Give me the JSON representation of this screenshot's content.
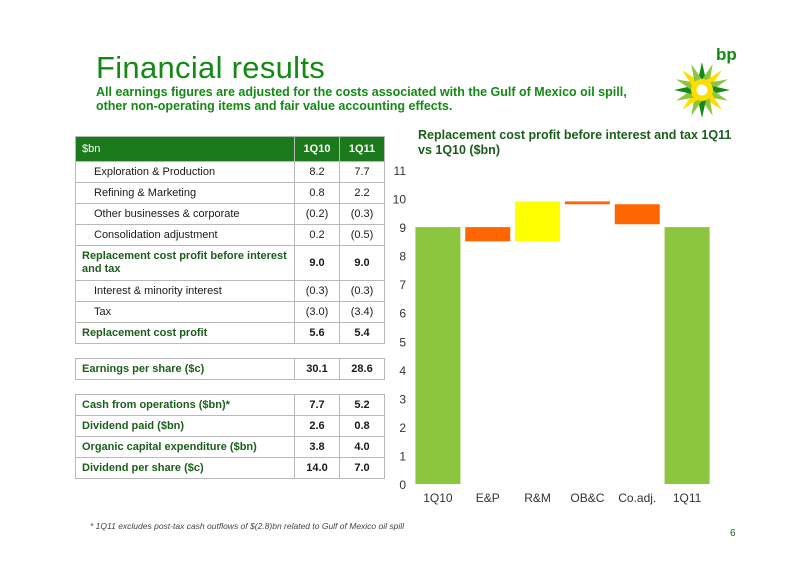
{
  "header": {
    "title": "Financial results",
    "subtitle": "All earnings figures are adjusted for the costs associated with the Gulf of Mexico oil spill, other non-operating items and fair value accounting effects.",
    "logo_text": "bp"
  },
  "table": {
    "header": [
      "$bn",
      "1Q10",
      "1Q11"
    ],
    "rows": [
      {
        "label": "Exploration & Production",
        "v1": "8.2",
        "v2": "7.7"
      },
      {
        "label": "Refining & Marketing",
        "v1": "0.8",
        "v2": "2.2"
      },
      {
        "label": "Other businesses & corporate",
        "v1": "(0.2)",
        "v2": "(0.3)"
      },
      {
        "label": "Consolidation adjustment",
        "v1": "0.2",
        "v2": "(0.5)"
      },
      {
        "label": "Replacement cost profit before interest and tax",
        "v1": "9.0",
        "v2": "9.0"
      },
      {
        "label": "Interest & minority interest",
        "v1": "(0.3)",
        "v2": "(0.3)"
      },
      {
        "label": "Tax",
        "v1": "(3.0)",
        "v2": "(3.4)"
      },
      {
        "label": "Replacement cost profit",
        "v1": "5.6",
        "v2": "5.4"
      }
    ],
    "eps": {
      "label": "Earnings per share ($c)",
      "v1": "30.1",
      "v2": "28.6"
    },
    "cash": [
      {
        "label": "Cash from operations ($bn)*",
        "v1": "7.7",
        "v2": "5.2"
      },
      {
        "label": "Dividend paid ($bn)",
        "v1": "2.6",
        "v2": "0.8"
      },
      {
        "label": "Organic capital expenditure ($bn)",
        "v1": "3.8",
        "v2": "4.0"
      },
      {
        "label": "Dividend per share ($c)",
        "v1": "14.0",
        "v2": "7.0"
      }
    ]
  },
  "chart_data": {
    "type": "bar",
    "subtype": "waterfall",
    "title": "Replacement cost profit before interest and tax 1Q11 vs 1Q10 ($bn)",
    "categories": [
      "1Q10",
      "E&P",
      "R&M",
      "OB&C",
      "Co.adj.",
      "1Q11"
    ],
    "bars": [
      {
        "category": "1Q10",
        "start": 0,
        "end": 9.0,
        "kind": "total"
      },
      {
        "category": "E&P",
        "start": 9.0,
        "end": 8.5,
        "kind": "decrease"
      },
      {
        "category": "R&M",
        "start": 8.5,
        "end": 9.9,
        "kind": "increase"
      },
      {
        "category": "OB&C",
        "start": 9.9,
        "end": 9.8,
        "kind": "decrease"
      },
      {
        "category": "Co.adj.",
        "start": 9.8,
        "end": 9.1,
        "kind": "decrease"
      },
      {
        "category": "1Q11",
        "start": 0,
        "end": 9.0,
        "kind": "total"
      }
    ],
    "ylim": [
      0,
      11
    ],
    "yticks": [
      "0",
      "1",
      "2",
      "3",
      "4",
      "5",
      "6",
      "7",
      "8",
      "9",
      "10",
      "11"
    ],
    "grid": false,
    "colors": {
      "total": "#8cc63f",
      "increase": "#ffff00",
      "decrease": "#ff6600"
    }
  },
  "footnote": "* 1Q11 excludes post-tax cash outflows of $(2.8)bn related to Gulf of Mexico oil spill",
  "page_number": "6",
  "colors": {
    "brand_green": "#138a13",
    "table_header": "#1b7a1b"
  }
}
